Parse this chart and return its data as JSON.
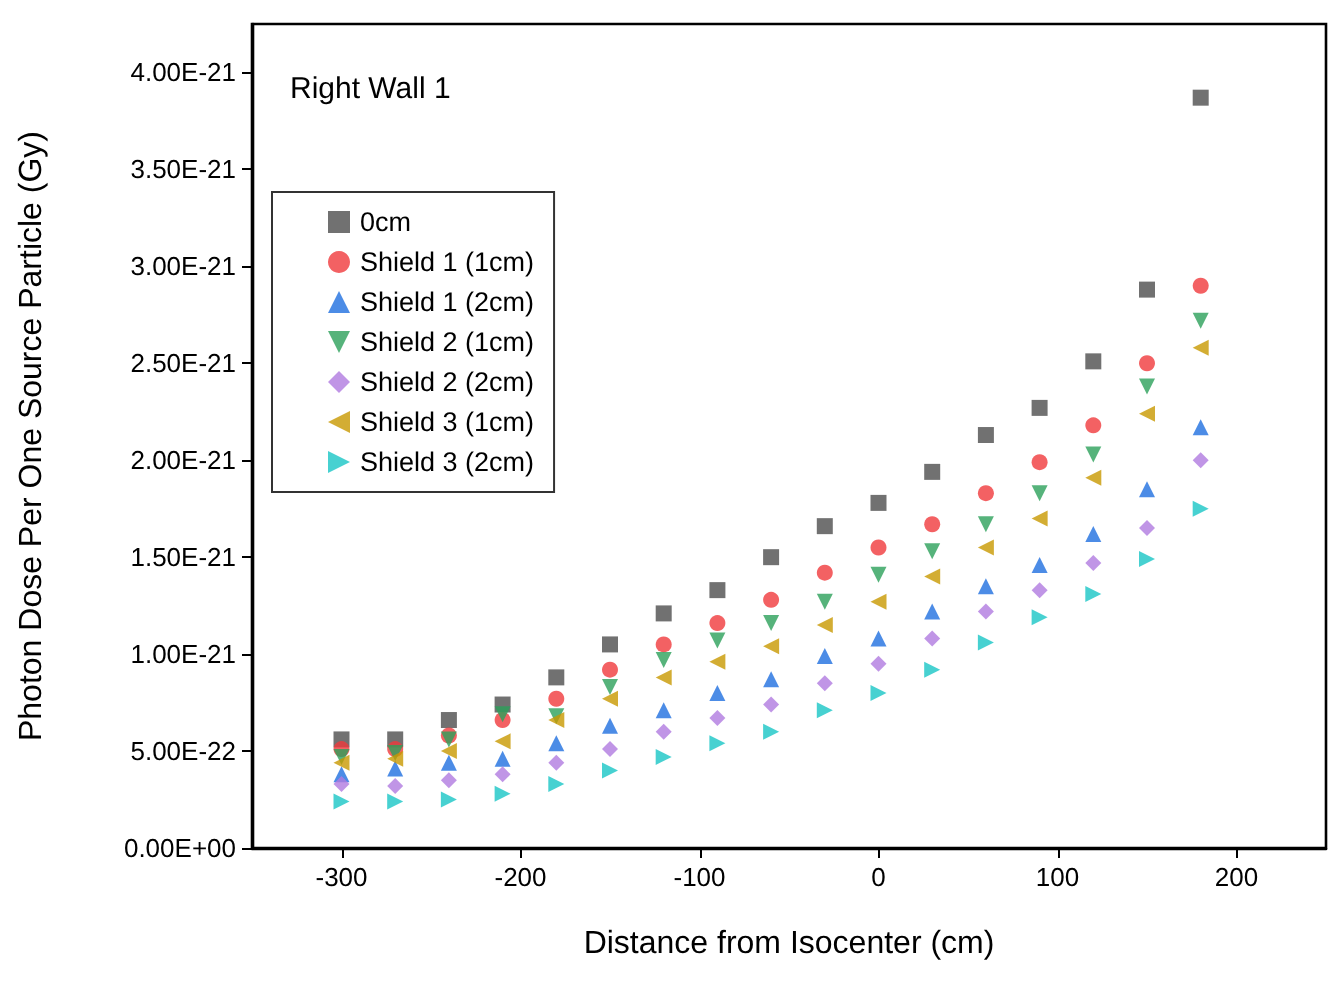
{
  "chart_data": {
    "type": "scatter",
    "xlabel": "Distance from Isocenter (cm)",
    "ylabel": "Photon Dose Per One Source Particle (Gy)",
    "annotations": [
      "Right Wall 1"
    ],
    "x": [
      -300,
      -270,
      -240,
      -210,
      -180,
      -150,
      -120,
      -90,
      -60,
      -30,
      0,
      30,
      60,
      90,
      120,
      150,
      180
    ],
    "xlim": [
      -350,
      250
    ],
    "xticks": [
      -300,
      -200,
      -100,
      0,
      100,
      200
    ],
    "ylim": [
      0,
      4.25e-21
    ],
    "yticks": [
      {
        "value": 0,
        "label": "0.00E+00"
      },
      {
        "value": 5e-22,
        "label": "5.00E-22"
      },
      {
        "value": 1e-21,
        "label": "1.00E-21"
      },
      {
        "value": 1.5e-21,
        "label": "1.50E-21"
      },
      {
        "value": 2e-21,
        "label": "2.00E-21"
      },
      {
        "value": 2.5e-21,
        "label": "2.50E-21"
      },
      {
        "value": 3e-21,
        "label": "3.00E-21"
      },
      {
        "value": 3.5e-21,
        "label": "3.50E-21"
      },
      {
        "value": 4e-21,
        "label": "4.00E-21"
      }
    ],
    "grid": false,
    "legend": "top left",
    "series": [
      {
        "name": "0cm",
        "color": "#4d4d4d",
        "marker": "square",
        "values": [
          5.6e-22,
          5.6e-22,
          6.6e-22,
          7.4e-22,
          8.8e-22,
          1.05e-21,
          1.21e-21,
          1.33e-21,
          1.5e-21,
          1.66e-21,
          1.78e-21,
          1.94e-21,
          2.13e-21,
          2.27e-21,
          2.51e-21,
          2.88e-21,
          3.87e-21
        ]
      },
      {
        "name": "Shield 1 (1cm)",
        "color": "#f0393c",
        "marker": "circle",
        "values": [
          5.1e-22,
          5.1e-22,
          5.8e-22,
          6.6e-22,
          7.7e-22,
          9.2e-22,
          1.05e-21,
          1.16e-21,
          1.28e-21,
          1.42e-21,
          1.55e-21,
          1.67e-21,
          1.83e-21,
          1.99e-21,
          2.18e-21,
          2.5e-21,
          2.9e-21
        ]
      },
      {
        "name": "Shield 1 (2cm)",
        "color": "#1f6fe0",
        "marker": "triangle",
        "values": [
          3.8e-22,
          4.1e-22,
          4.4e-22,
          4.6e-22,
          5.4e-22,
          6.3e-22,
          7.1e-22,
          8e-22,
          8.7e-22,
          9.9e-22,
          1.08e-21,
          1.22e-21,
          1.35e-21,
          1.46e-21,
          1.62e-21,
          1.85e-21,
          2.17e-21
        ]
      },
      {
        "name": "Shield 2 (1cm)",
        "color": "#2ca05a",
        "marker": "triangle-down",
        "values": [
          4.7e-22,
          4.9e-22,
          5.6e-22,
          6.9e-22,
          6.8e-22,
          8.3e-22,
          9.7e-22,
          1.07e-21,
          1.16e-21,
          1.27e-21,
          1.41e-21,
          1.53e-21,
          1.67e-21,
          1.83e-21,
          2.03e-21,
          2.38e-21,
          2.72e-21
        ]
      },
      {
        "name": "Shield 2 (2cm)",
        "color": "#b07ae0",
        "marker": "diamond",
        "values": [
          3.3e-22,
          3.2e-22,
          3.5e-22,
          3.8e-22,
          4.4e-22,
          5.1e-22,
          6e-22,
          6.7e-22,
          7.4e-22,
          8.5e-22,
          9.5e-22,
          1.08e-21,
          1.22e-21,
          1.33e-21,
          1.47e-21,
          1.65e-21,
          2e-21
        ]
      },
      {
        "name": "Shield 3 (1cm)",
        "color": "#c89800",
        "marker": "triangle-left",
        "values": [
          4.4e-22,
          4.6e-22,
          5e-22,
          5.5e-22,
          6.6e-22,
          7.7e-22,
          8.8e-22,
          9.6e-22,
          1.04e-21,
          1.15e-21,
          1.27e-21,
          1.4e-21,
          1.55e-21,
          1.7e-21,
          1.91e-21,
          2.24e-21,
          2.58e-21
        ]
      },
      {
        "name": "Shield 3 (2cm)",
        "color": "#19c6c6",
        "marker": "triangle-right",
        "values": [
          2.4e-22,
          2.4e-22,
          2.5e-22,
          2.8e-22,
          3.3e-22,
          4e-22,
          4.7e-22,
          5.4e-22,
          6e-22,
          7.1e-22,
          8e-22,
          9.2e-22,
          1.06e-21,
          1.19e-21,
          1.31e-21,
          1.49e-21,
          1.75e-21
        ]
      }
    ]
  }
}
